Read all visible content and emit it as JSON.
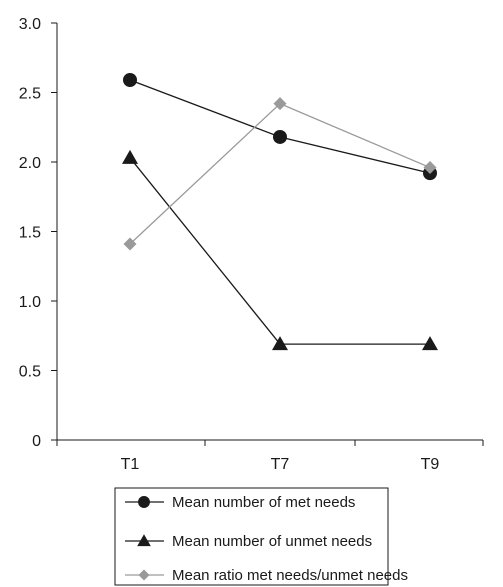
{
  "chart_data": {
    "type": "line",
    "title": "",
    "xlabel": "",
    "ylabel": "",
    "categories": [
      "T1",
      "T7",
      "T9"
    ],
    "ylim": [
      0,
      3.0
    ],
    "yticks": [
      "0",
      "0.5",
      "1.0",
      "1.5",
      "2.0",
      "2.5",
      "3.0"
    ],
    "ytick_values": [
      0,
      0.5,
      1.0,
      1.5,
      2.0,
      2.5,
      3.0
    ],
    "grid": false,
    "legend_position": "bottom",
    "series": [
      {
        "name": "Mean number of met needs",
        "values": [
          2.59,
          2.18,
          1.92
        ],
        "marker": "circle",
        "color": "#1a1a1a"
      },
      {
        "name": "Mean number of unmet needs",
        "values": [
          2.03,
          0.69,
          0.69
        ],
        "marker": "triangle",
        "color": "#1a1a1a"
      },
      {
        "name": "Mean ratio met needs/unmet needs",
        "values": [
          1.41,
          2.42,
          1.96
        ],
        "marker": "diamond",
        "color": "#9a9a9a"
      }
    ]
  }
}
